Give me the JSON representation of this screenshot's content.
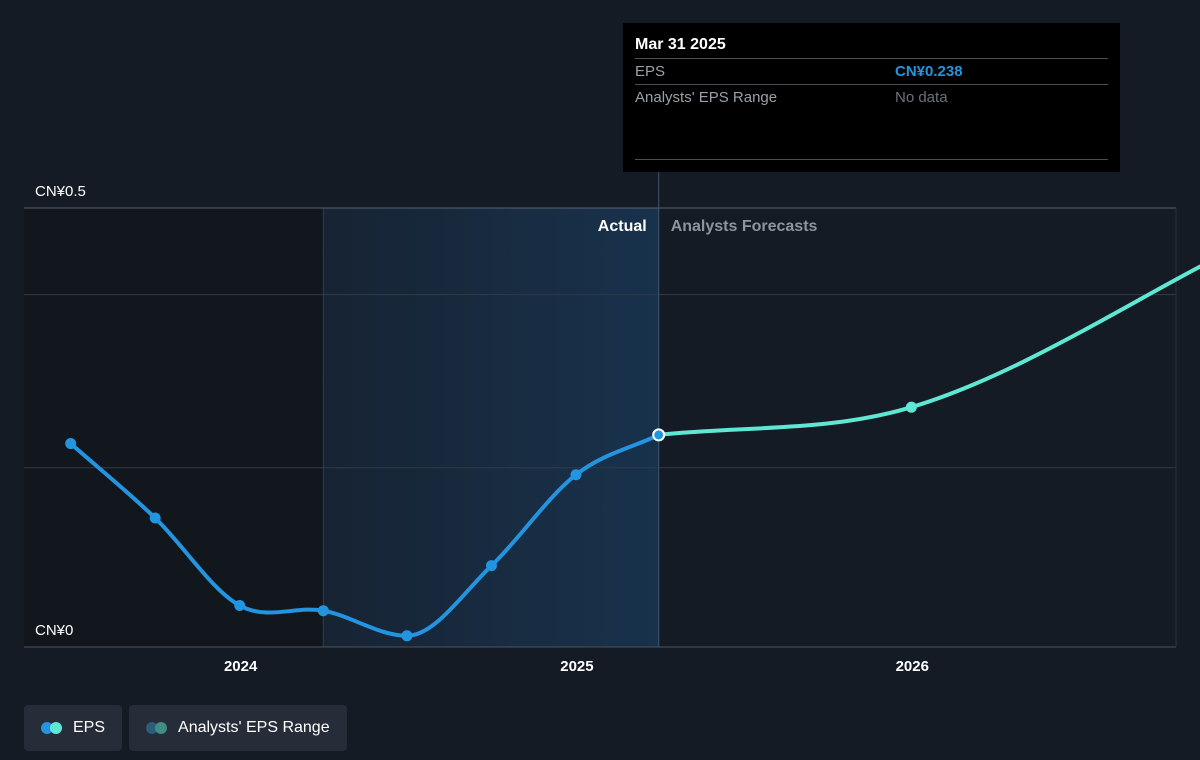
{
  "tooltip": {
    "date": "Mar 31 2025",
    "eps_label": "EPS",
    "eps_value": "CN¥0.238",
    "range_label": "Analysts' EPS Range",
    "range_value": "No data"
  },
  "legend": {
    "eps_label": "EPS",
    "range_label": "Analysts' EPS Range"
  },
  "colors": {
    "background": "#151b24",
    "actual_line": "#2394df",
    "forecast_line": "#5ee8d4",
    "grid": "#3a414c",
    "range_dot_dark": "#2b5e7a",
    "range_dot_light": "#3f8e86"
  },
  "chart_data": {
    "type": "line",
    "y_unit_prefix": "CN¥",
    "ylim": [
      0,
      0.5
    ],
    "y_ticks": [
      {
        "value": 0.5,
        "label": "CN¥0.5"
      },
      {
        "value": 0,
        "label": "CN¥0"
      }
    ],
    "gridlines": [
      0.5,
      0.4,
      0.2
    ],
    "x_ticks": [
      {
        "date": "2024-01-01",
        "label": "2024"
      },
      {
        "date": "2025-01-01",
        "label": "2025"
      },
      {
        "date": "2026-01-01",
        "label": "2026"
      }
    ],
    "xlim": [
      "2023-06-01",
      "2026-10-15"
    ],
    "divider_date": "2025-03-31",
    "highlight_start": "2024-03-31",
    "region_labels": {
      "actual": "Actual",
      "forecast": "Analysts Forecasts"
    },
    "series": [
      {
        "name": "EPS",
        "kind": "actual",
        "points": [
          {
            "date": "2023-06-30",
            "value": 0.228
          },
          {
            "date": "2023-09-30",
            "value": 0.142
          },
          {
            "date": "2023-12-31",
            "value": 0.041
          },
          {
            "date": "2024-03-31",
            "value": 0.035
          },
          {
            "date": "2024-06-30",
            "value": 0.006
          },
          {
            "date": "2024-09-30",
            "value": 0.087
          },
          {
            "date": "2024-12-31",
            "value": 0.192
          },
          {
            "date": "2025-03-31",
            "value": 0.238
          }
        ]
      },
      {
        "name": "EPS",
        "kind": "forecast",
        "points": [
          {
            "date": "2025-03-31",
            "value": 0.238
          },
          {
            "date": "2025-12-31",
            "value": 0.27
          },
          {
            "date": "2026-12-31",
            "value": 0.46
          }
        ]
      }
    ]
  }
}
